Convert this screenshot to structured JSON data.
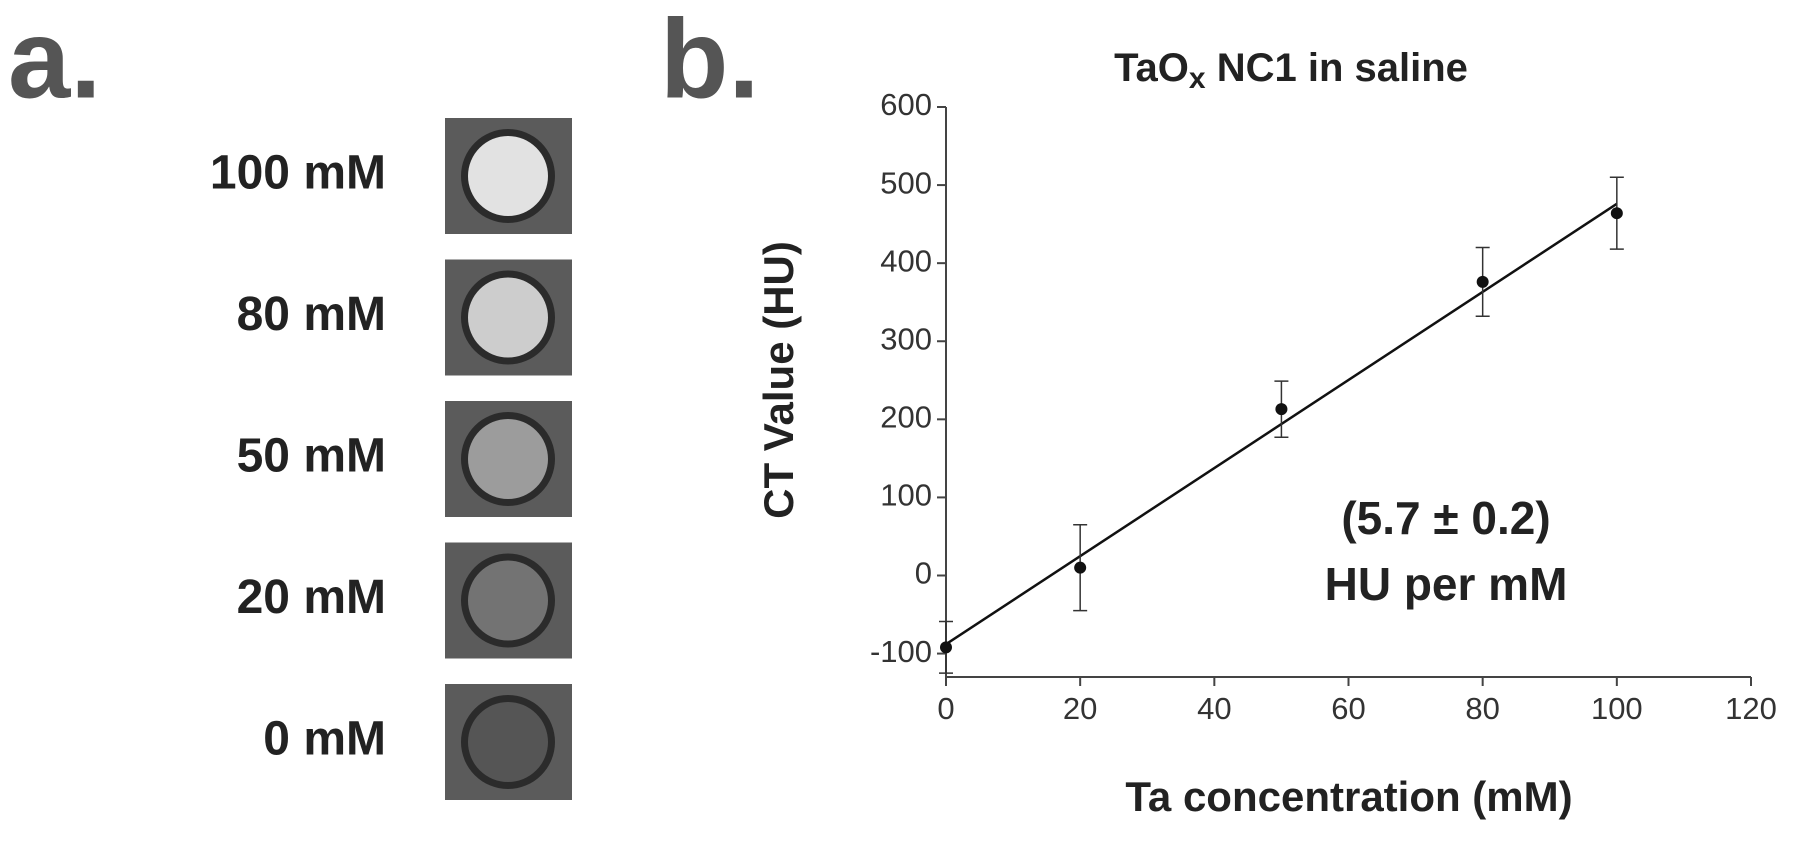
{
  "panel_labels": [
    "a.",
    "b."
  ],
  "phantoms": {
    "labels": [
      "100 mM",
      "80 mM",
      "50 mM",
      "20 mM",
      "0 mM"
    ],
    "colors": [
      "#e2e2e2",
      "#cdcdcd",
      "#9c9c9c",
      "#737373",
      "#555555"
    ]
  },
  "chart_data": {
    "type": "scatter",
    "title": [
      "TaO",
      "x",
      " NC1 in saline"
    ],
    "x_label": "Ta concentration (mM)",
    "y_label": "CT Value (HU)",
    "x": [
      0,
      20,
      50,
      80,
      100
    ],
    "values": [
      -92,
      10,
      213,
      376,
      464
    ],
    "errors": [
      33,
      55,
      36,
      44,
      46
    ],
    "color": "#111111",
    "fit": {
      "x": [
        0,
        100
      ],
      "values": [
        -88,
        476
      ]
    },
    "annotation": [
      "(5.7 ± 0.2)",
      "HU per mM"
    ],
    "xlim": [
      0,
      120
    ],
    "xticks": [
      0,
      20,
      40,
      60,
      80,
      100,
      120
    ],
    "ylim": [
      -130,
      600
    ],
    "yticks": [
      -100,
      0,
      100,
      200,
      300,
      400,
      500,
      600
    ]
  }
}
